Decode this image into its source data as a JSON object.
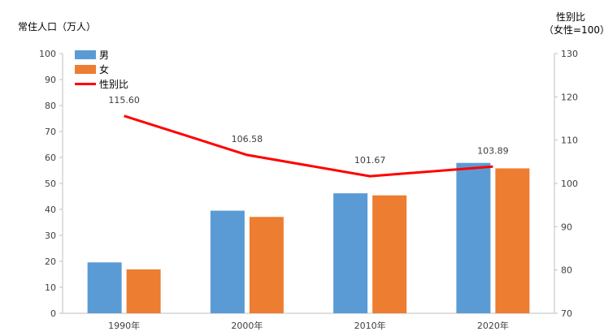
{
  "chart_data": {
    "type": "bar",
    "categories": [
      "1990年",
      "2000年",
      "2010年",
      "2020年"
    ],
    "series": [
      {
        "name": "男",
        "kind": "bar",
        "axis": "left",
        "color": "#5b9bd5",
        "values": [
          19.6,
          39.5,
          46.2,
          57.9
        ]
      },
      {
        "name": "女",
        "kind": "bar",
        "axis": "left",
        "color": "#ed7d31",
        "values": [
          16.9,
          37.1,
          45.4,
          55.8
        ]
      },
      {
        "name": "性别比",
        "kind": "line",
        "axis": "right",
        "color": "#ff0000",
        "values": [
          115.6,
          106.58,
          101.67,
          103.89
        ],
        "labels": [
          "115.60",
          "106.58",
          "101.67",
          "103.89"
        ]
      }
    ],
    "ylabel": "常住人口（万人）",
    "ylabel_right": [
      "性别比",
      "（女性=100）"
    ],
    "ylim": [
      0,
      100
    ],
    "yticks": [
      0,
      10,
      20,
      30,
      40,
      50,
      60,
      70,
      80,
      90,
      100
    ],
    "ylim_right": [
      70,
      130
    ],
    "yticks_right": [
      70,
      80,
      90,
      100,
      110,
      120,
      130
    ],
    "legend_position": "top-left",
    "grid": false
  }
}
